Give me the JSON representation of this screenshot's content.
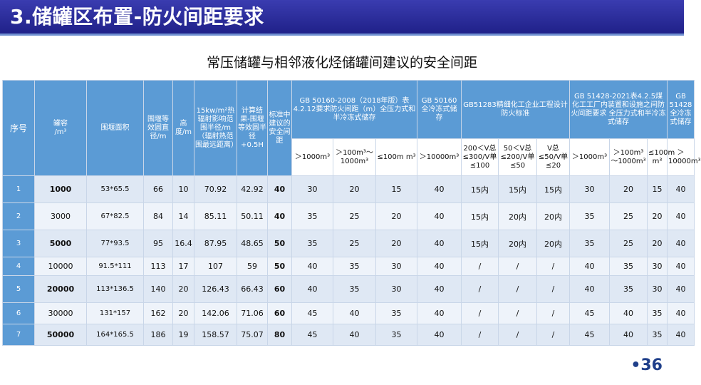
{
  "title": "3.储罐区布置-防火间距要求",
  "subtitle": "常压储罐与相邻液化烃储罐间建议的安全间距",
  "page_number": "•36",
  "headers": {
    "seq": "序号",
    "volume": "罐容\n/m³",
    "dike_area": "围堰面积",
    "eq_diameter": "围堰等效圆直径/m",
    "height": "高度/m",
    "radiation": "15kw/m²热辐射影响范围半径/m（辐射热范围最远距离）",
    "calc": "计算结果-围堰等效圆半径+0.5H",
    "standard": "标准中建议的安全间距",
    "gb50160_2008": "GB 50160-2008（2018年版）表4.2.12要求防火间距（m）全压力式和半冷冻式储存",
    "gb50160_full": "GB 50160全冷冻式储存",
    "gb51283": "GB51283精细化工企业工程设计防火标准",
    "gb51428": "GB 51428-2021表4.2.5煤化工工厂内装置和设施之间防火间距要求 全压力式和半冷冻式储存",
    "gb51428_full": "GB 51428全冷冻式储存"
  },
  "subheaders": [
    "＞1000m³",
    "＞100m³～1000m³",
    "≤100m m³",
    "＞10000m³",
    "200＜V总≤300/V单≤100",
    "50＜V总≤200/V单≤50",
    "V总≤50/V单≤20",
    "＞1000m³",
    "＞100m³～1000m³",
    "≤100m m³",
    "＞10000m³"
  ],
  "rows": [
    [
      "1",
      "1000",
      "53*65.5",
      "66",
      "10",
      "70.92",
      "42.92",
      "40",
      "30",
      "20",
      "15",
      "40",
      "15内",
      "15内",
      "15内",
      "30",
      "20",
      "15",
      "40"
    ],
    [
      "2",
      "3000",
      "67*82.5",
      "84",
      "14",
      "85.11",
      "50.11",
      "40",
      "35",
      "25",
      "20",
      "40",
      "15内",
      "20内",
      "20内",
      "35",
      "25",
      "20",
      "40"
    ],
    [
      "3",
      "5000",
      "77*93.5",
      "95",
      "16.4",
      "87.95",
      "48.65",
      "50",
      "35",
      "25",
      "20",
      "40",
      "15内",
      "20内",
      "20内",
      "35",
      "25",
      "20",
      "40"
    ],
    [
      "4",
      "10000",
      "91.5*111",
      "113",
      "17",
      "107",
      "59",
      "50",
      "40",
      "35",
      "30",
      "40",
      "/",
      "/",
      "/",
      "40",
      "35",
      "30",
      "40"
    ],
    [
      "5",
      "20000",
      "113*136.5",
      "140",
      "20",
      "126.43",
      "66.43",
      "60",
      "40",
      "35",
      "30",
      "40",
      "/",
      "/",
      "/",
      "40",
      "35",
      "30",
      "40"
    ],
    [
      "6",
      "30000",
      "131*157",
      "162",
      "20",
      "142.06",
      "71.06",
      "60",
      "45",
      "40",
      "35",
      "40",
      "/",
      "/",
      "/",
      "45",
      "40",
      "35",
      "40"
    ],
    [
      "7",
      "50000",
      "164*165.5",
      "186",
      "19",
      "158.57",
      "75.07",
      "80",
      "45",
      "40",
      "35",
      "40",
      "/",
      "/",
      "/",
      "45",
      "40",
      "35",
      "40"
    ]
  ],
  "colors": {
    "title_bar": "#2b2d9e",
    "header": "#5b9bd5",
    "row_a": "#dfe8f4",
    "row_b": "#eef3fa"
  }
}
